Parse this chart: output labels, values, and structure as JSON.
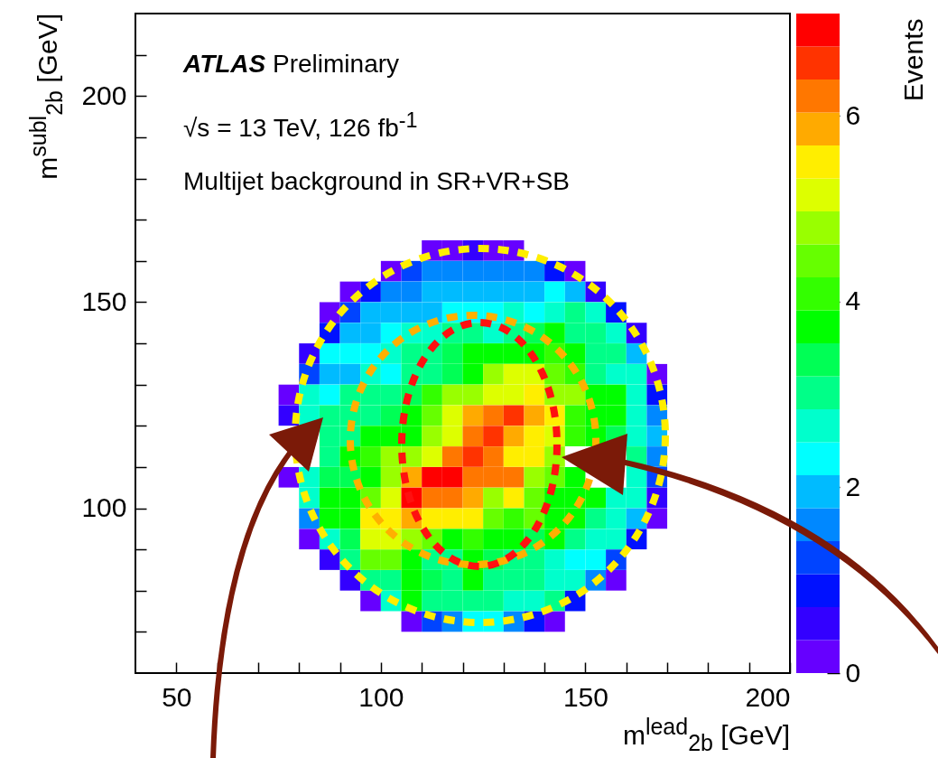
{
  "chart_data": {
    "type": "scatter",
    "marker": "square",
    "xlabel": "m$^{lead}$$_{2b}$ [GeV]",
    "ylabel": "m$^{subl}$$_{2b}$ [GeV]",
    "clabel": "Events",
    "annotations": [
      "ATLAS Preliminary",
      "√s = 13 TeV, 126 fb$^{-1}$",
      "Multijet background in SR+VR+SB"
    ],
    "x": [
      112.5,
      117.5,
      122.5,
      127.5,
      132.5,
      102.5,
      107.5,
      112.5,
      117.5,
      122.5,
      127.5,
      132.5,
      137.5,
      142.5,
      147.5,
      92.5,
      97.5,
      102.5,
      107.5,
      112.5,
      117.5,
      122.5,
      127.5,
      132.5,
      137.5,
      142.5,
      147.5,
      152.5,
      87.5,
      92.5,
      97.5,
      102.5,
      107.5,
      112.5,
      117.5,
      122.5,
      127.5,
      132.5,
      137.5,
      142.5,
      147.5,
      152.5,
      157.5,
      87.5,
      92.5,
      97.5,
      102.5,
      107.5,
      112.5,
      117.5,
      122.5,
      127.5,
      132.5,
      137.5,
      142.5,
      147.5,
      152.5,
      157.5,
      162.5,
      82.5,
      87.5,
      92.5,
      97.5,
      102.5,
      107.5,
      112.5,
      117.5,
      122.5,
      127.5,
      132.5,
      137.5,
      142.5,
      147.5,
      152.5,
      157.5,
      162.5,
      82.5,
      87.5,
      92.5,
      97.5,
      102.5,
      107.5,
      112.5,
      117.5,
      122.5,
      127.5,
      132.5,
      137.5,
      142.5,
      147.5,
      152.5,
      157.5,
      162.5,
      167.5,
      77.5,
      82.5,
      87.5,
      92.5,
      97.5,
      102.5,
      107.5,
      112.5,
      117.5,
      122.5,
      127.5,
      132.5,
      137.5,
      142.5,
      147.5,
      152.5,
      157.5,
      162.5,
      167.5,
      77.5,
      82.5,
      87.5,
      92.5,
      97.5,
      102.5,
      107.5,
      112.5,
      117.5,
      122.5,
      127.5,
      132.5,
      137.5,
      142.5,
      147.5,
      152.5,
      157.5,
      162.5,
      167.5,
      87.5,
      92.5,
      97.5,
      102.5,
      107.5,
      112.5,
      117.5,
      122.5,
      127.5,
      132.5,
      137.5,
      142.5,
      147.5,
      152.5,
      157.5,
      162.5,
      167.5,
      87.5,
      92.5,
      97.5,
      102.5,
      107.5,
      112.5,
      117.5,
      122.5,
      127.5,
      132.5,
      137.5,
      142.5,
      162.5,
      167.5,
      77.5,
      82.5,
      87.5,
      92.5,
      97.5,
      102.5,
      107.5,
      112.5,
      117.5,
      122.5,
      127.5,
      132.5,
      137.5,
      142.5,
      147.5,
      162.5,
      167.5,
      82.5,
      87.5,
      92.5,
      97.5,
      102.5,
      107.5,
      112.5,
      117.5,
      122.5,
      127.5,
      132.5,
      137.5,
      142.5,
      147.5,
      152.5,
      157.5,
      162.5,
      167.5,
      82.5,
      87.5,
      92.5,
      97.5,
      102.5,
      107.5,
      112.5,
      117.5,
      122.5,
      127.5,
      132.5,
      137.5,
      142.5,
      147.5,
      152.5,
      157.5,
      162.5,
      167.5,
      82.5,
      87.5,
      92.5,
      97.5,
      102.5,
      107.5,
      112.5,
      117.5,
      122.5,
      127.5,
      132.5,
      137.5,
      142.5,
      147.5,
      152.5,
      157.5,
      162.5,
      87.5,
      92.5,
      97.5,
      102.5,
      107.5,
      112.5,
      117.5,
      122.5,
      127.5,
      132.5,
      137.5,
      142.5,
      147.5,
      152.5,
      157.5,
      92.5,
      97.5,
      102.5,
      107.5,
      112.5,
      117.5,
      122.5,
      127.5,
      132.5,
      137.5,
      142.5,
      147.5,
      152.5,
      157.5,
      97.5,
      102.5,
      107.5,
      112.5,
      117.5,
      122.5,
      127.5,
      132.5,
      137.5,
      142.5,
      147.5,
      107.5,
      112.5,
      117.5,
      122.5,
      127.5,
      132.5,
      137.5,
      142.5
    ],
    "values": [
      162.5,
      162.5,
      162.5,
      162.5,
      162.5,
      157.5,
      157.5,
      157.5,
      157.5,
      157.5,
      157.5,
      157.5,
      157.5,
      157.5,
      157.5,
      152.5,
      152.5,
      152.5,
      152.5,
      152.5,
      152.5,
      152.5,
      152.5,
      152.5,
      152.5,
      152.5,
      152.5,
      152.5,
      147.5,
      147.5,
      147.5,
      147.5,
      147.5,
      147.5,
      147.5,
      147.5,
      147.5,
      147.5,
      147.5,
      147.5,
      147.5,
      147.5,
      147.5,
      142.5,
      142.5,
      142.5,
      142.5,
      142.5,
      142.5,
      142.5,
      142.5,
      142.5,
      142.5,
      142.5,
      142.5,
      142.5,
      142.5,
      142.5,
      142.5,
      137.5,
      137.5,
      137.5,
      137.5,
      137.5,
      137.5,
      137.5,
      137.5,
      137.5,
      137.5,
      137.5,
      137.5,
      137.5,
      137.5,
      137.5,
      137.5,
      137.5,
      132.5,
      132.5,
      132.5,
      132.5,
      132.5,
      132.5,
      132.5,
      132.5,
      132.5,
      132.5,
      132.5,
      132.5,
      132.5,
      132.5,
      132.5,
      132.5,
      132.5,
      132.5,
      127.5,
      127.5,
      127.5,
      127.5,
      127.5,
      127.5,
      127.5,
      127.5,
      127.5,
      127.5,
      127.5,
      127.5,
      127.5,
      127.5,
      127.5,
      127.5,
      127.5,
      127.5,
      127.5,
      122.5,
      122.5,
      122.5,
      122.5,
      122.5,
      122.5,
      122.5,
      122.5,
      122.5,
      122.5,
      122.5,
      122.5,
      122.5,
      122.5,
      122.5,
      122.5,
      122.5,
      122.5,
      122.5,
      117.5,
      117.5,
      117.5,
      117.5,
      117.5,
      117.5,
      117.5,
      117.5,
      117.5,
      117.5,
      117.5,
      117.5,
      117.5,
      117.5,
      117.5,
      117.5,
      117.5,
      112.5,
      112.5,
      112.5,
      112.5,
      112.5,
      112.5,
      112.5,
      112.5,
      112.5,
      112.5,
      112.5,
      112.5,
      112.5,
      112.5,
      107.5,
      107.5,
      107.5,
      107.5,
      107.5,
      107.5,
      107.5,
      107.5,
      107.5,
      107.5,
      107.5,
      107.5,
      107.5,
      107.5,
      107.5,
      107.5,
      107.5,
      102.5,
      102.5,
      102.5,
      102.5,
      102.5,
      102.5,
      102.5,
      102.5,
      102.5,
      102.5,
      102.5,
      102.5,
      102.5,
      102.5,
      102.5,
      102.5,
      102.5,
      102.5,
      97.5,
      97.5,
      97.5,
      97.5,
      97.5,
      97.5,
      97.5,
      97.5,
      97.5,
      97.5,
      97.5,
      97.5,
      97.5,
      97.5,
      97.5,
      97.5,
      97.5,
      97.5,
      92.5,
      92.5,
      92.5,
      92.5,
      92.5,
      92.5,
      92.5,
      92.5,
      92.5,
      92.5,
      92.5,
      92.5,
      92.5,
      92.5,
      92.5,
      92.5,
      92.5,
      87.5,
      87.5,
      87.5,
      87.5,
      87.5,
      87.5,
      87.5,
      87.5,
      87.5,
      87.5,
      87.5,
      87.5,
      87.5,
      87.5,
      87.5,
      82.5,
      82.5,
      82.5,
      82.5,
      82.5,
      82.5,
      82.5,
      82.5,
      82.5,
      82.5,
      82.5,
      82.5,
      82.5,
      82.5,
      77.5,
      77.5,
      77.5,
      77.5,
      77.5,
      77.5,
      77.5,
      77.5,
      77.5,
      77.5,
      77.5,
      72.5,
      72.5,
      72.5,
      72.5,
      72.5,
      72.5,
      72.5,
      72.5
    ],
    "cvalues": [
      0.2,
      0.2,
      0.5,
      0.2,
      0.2,
      0.2,
      1.2,
      1.6,
      1.6,
      1.6,
      1.6,
      1.6,
      1.6,
      0.9,
      0.2,
      0.2,
      0.9,
      1.6,
      1.6,
      2.0,
      2.0,
      2.0,
      2.0,
      2.0,
      2.0,
      2.3,
      2.0,
      0.5,
      0.2,
      1.2,
      2.0,
      2.0,
      2.0,
      2.0,
      2.3,
      2.3,
      2.3,
      2.7,
      2.3,
      2.7,
      3.0,
      2.7,
      0.9,
      0.9,
      2.0,
      2.0,
      2.3,
      2.7,
      2.7,
      3.0,
      3.0,
      2.7,
      3.0,
      3.4,
      3.8,
      3.0,
      3.0,
      2.7,
      0.5,
      0.5,
      2.3,
      2.3,
      2.3,
      2.7,
      3.0,
      3.0,
      3.4,
      3.8,
      3.8,
      3.8,
      3.8,
      4.1,
      3.8,
      3.0,
      3.0,
      2.0,
      1.2,
      2.0,
      2.0,
      2.7,
      2.3,
      3.0,
      3.0,
      3.4,
      3.8,
      4.8,
      5.2,
      5.2,
      4.5,
      4.1,
      3.0,
      2.7,
      2.7,
      0.2,
      0.2,
      2.7,
      2.3,
      3.0,
      3.0,
      3.0,
      3.4,
      4.1,
      4.8,
      4.8,
      5.2,
      5.2,
      5.5,
      4.8,
      4.8,
      3.8,
      3.8,
      2.7,
      0.9,
      0.5,
      2.7,
      3.0,
      3.0,
      3.0,
      3.4,
      3.8,
      4.5,
      5.2,
      5.9,
      6.2,
      6.6,
      5.9,
      5.5,
      4.1,
      3.8,
      3.8,
      2.7,
      1.6,
      3.0,
      3.0,
      3.8,
      3.8,
      3.8,
      4.8,
      5.2,
      6.2,
      6.6,
      5.9,
      5.5,
      5.2,
      4.1,
      3.8,
      3.4,
      2.7,
      2.0,
      3.0,
      3.8,
      4.1,
      4.8,
      4.8,
      5.2,
      6.2,
      6.6,
      6.2,
      5.5,
      5.5,
      4.8,
      3.0,
      1.6,
      0.2,
      2.7,
      3.4,
      3.4,
      3.8,
      4.8,
      5.9,
      7.0,
      7.0,
      6.2,
      6.2,
      6.2,
      4.8,
      4.5,
      3.8,
      2.7,
      1.2,
      2.7,
      3.8,
      3.8,
      4.5,
      5.2,
      7.0,
      6.2,
      6.2,
      5.9,
      4.8,
      5.5,
      4.5,
      3.8,
      3.8,
      3.8,
      2.7,
      2.7,
      0.5,
      1.6,
      3.8,
      3.8,
      5.5,
      5.5,
      5.9,
      5.5,
      5.5,
      5.5,
      4.5,
      4.1,
      4.5,
      3.8,
      3.8,
      3.0,
      2.7,
      2.0,
      0.2,
      0.2,
      2.7,
      3.4,
      5.2,
      5.2,
      4.8,
      4.5,
      3.8,
      4.1,
      3.8,
      3.8,
      3.4,
      3.8,
      3.0,
      2.7,
      2.7,
      0.9,
      0.5,
      3.0,
      4.5,
      4.5,
      3.8,
      3.0,
      3.0,
      3.8,
      3.4,
      3.0,
      3.0,
      2.7,
      2.3,
      2.3,
      1.2,
      0.5,
      3.0,
      3.0,
      3.8,
      3.4,
      3.0,
      3.8,
      3.0,
      3.0,
      3.0,
      2.7,
      2.7,
      1.6,
      0.2,
      0.2,
      2.7,
      3.8,
      3.0,
      3.0,
      3.0,
      3.0,
      2.7,
      2.7,
      3.0,
      0.9,
      0.2,
      1.2,
      1.6,
      2.3,
      2.3,
      1.6,
      0.9,
      0.2
    ],
    "clim": [
      0,
      7.1
    ],
    "cticks": [
      0,
      2,
      4,
      6
    ],
    "xlim": [
      40,
      200
    ],
    "xticks": [
      50,
      {
        "value": 60,
        "label": null
      },
      {
        "value": 70,
        "label": null
      },
      {
        "value": 80,
        "label": null
      },
      {
        "value": 90,
        "label": null
      },
      100,
      {
        "value": 110,
        "label": null
      },
      {
        "value": 120,
        "label": null
      },
      {
        "value": 130,
        "label": null
      },
      {
        "value": 140,
        "label": null
      },
      150,
      {
        "value": 160,
        "label": null
      },
      {
        "value": 170,
        "label": null
      },
      {
        "value": 180,
        "label": null
      },
      {
        "value": 190,
        "label": null
      },
      200
    ],
    "ylim": [
      60,
      220
    ],
    "yticks": [
      {
        "value": 70,
        "label": null
      },
      {
        "value": 80,
        "label": null
      },
      {
        "value": 90,
        "label": null
      },
      100,
      {
        "value": 110,
        "label": null
      },
      {
        "value": 120,
        "label": null
      },
      {
        "value": 130,
        "label": null
      },
      {
        "value": 140,
        "label": null
      },
      150,
      {
        "value": 160,
        "label": null
      },
      {
        "value": 170,
        "label": null
      },
      {
        "value": 180,
        "label": null
      },
      {
        "value": 190,
        "label": null
      },
      200,
      {
        "value": 210,
        "label": null
      }
    ]
  }
}
